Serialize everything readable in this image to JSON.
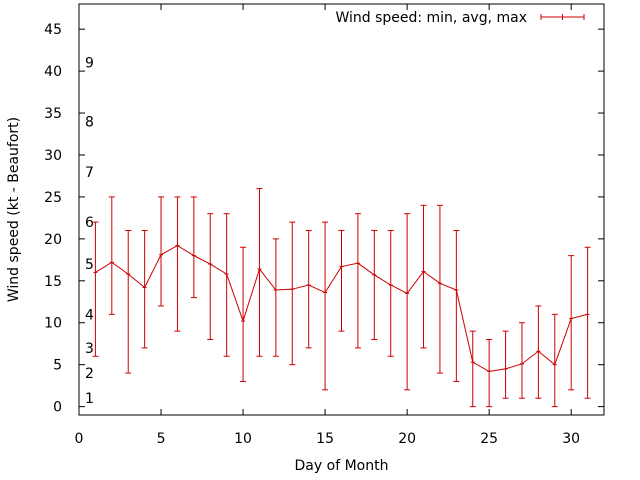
{
  "chart_data": {
    "type": "line",
    "title": "",
    "xlabel": "Day of Month",
    "ylabel": "Wind speed (kt - Beaufort)",
    "xlim": [
      0,
      32
    ],
    "ylim": [
      -1,
      48
    ],
    "xticks": [
      0,
      5,
      10,
      15,
      20,
      25,
      30
    ],
    "yticks": [
      0,
      5,
      10,
      15,
      20,
      25,
      30,
      35,
      40,
      45
    ],
    "grid": false,
    "legend_position": "top-right",
    "series": [
      {
        "name": "Wind speed: min, avg, max",
        "color": "#cc0000",
        "x": [
          1,
          2,
          3,
          4,
          5,
          6,
          7,
          8,
          9,
          10,
          11,
          12,
          13,
          14,
          15,
          16,
          17,
          18,
          19,
          20,
          21,
          22,
          23,
          24,
          25,
          26,
          27,
          28,
          29,
          30,
          31
        ],
        "avg": [
          16,
          17.2,
          15.8,
          14.2,
          18.1,
          19.2,
          18,
          17,
          15.8,
          10.2,
          16.4,
          13.9,
          14,
          14.5,
          13.6,
          16.7,
          17.1,
          15.7,
          14.5,
          13.5,
          16.1,
          14.7,
          13.9,
          5.3,
          4.2,
          4.5,
          5.1,
          6.6,
          5,
          10.5,
          11
        ],
        "min": [
          6,
          11,
          4,
          7,
          12,
          9,
          13,
          8,
          6,
          3,
          6,
          6,
          5,
          7,
          2,
          9,
          7,
          8,
          6,
          2,
          7,
          4,
          3,
          0,
          0,
          1,
          1,
          1,
          0,
          2,
          1
        ],
        "max": [
          22,
          25,
          21,
          21,
          25,
          25,
          25,
          23,
          23,
          19,
          26,
          20,
          22,
          21,
          22,
          21,
          23,
          21,
          21,
          23,
          24,
          24,
          21,
          9,
          8,
          9,
          10,
          12,
          11,
          18,
          19
        ]
      }
    ],
    "beaufort_labels": [
      {
        "label": "1",
        "value": 1
      },
      {
        "label": "2",
        "value": 4
      },
      {
        "label": "3",
        "value": 7
      },
      {
        "label": "4",
        "value": 11
      },
      {
        "label": "5",
        "value": 17
      },
      {
        "label": "6",
        "value": 22
      },
      {
        "label": "7",
        "value": 28
      },
      {
        "label": "8",
        "value": 34
      },
      {
        "label": "9",
        "value": 41
      }
    ]
  }
}
